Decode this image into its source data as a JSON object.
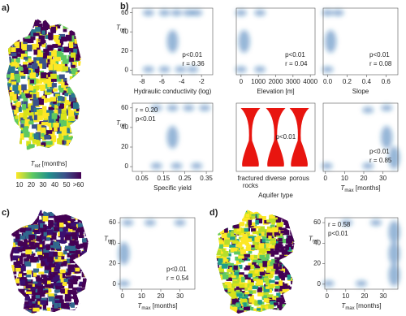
{
  "panel_labels": {
    "a": "a)",
    "b": "b)",
    "c": "c)",
    "d": "d)"
  },
  "colorbar": {
    "title": {
      "symbol": "T",
      "subscript": "ret",
      "unit": " [months]"
    },
    "ticks": [
      "10",
      "20",
      "30",
      "40",
      "50",
      ">60"
    ]
  },
  "y_axis_title": {
    "symbol": "T",
    "subscript": "ret"
  },
  "yticks": [
    "0",
    "20",
    "40",
    "60"
  ],
  "plots": [
    {
      "xlabel": "Hydraulic conductivity (log)",
      "xticks": [
        "-8",
        "-6",
        "-4",
        "-2"
      ],
      "annotations": [
        "p<0.01",
        "r = 0.36"
      ]
    },
    {
      "xlabel": "Elevation [m]",
      "xticks": [
        "0",
        "1000",
        "2000",
        "3000",
        "4000"
      ],
      "annotations": [
        "p<0.01",
        "r = 0.04"
      ]
    },
    {
      "xlabel": "Slope",
      "xticks": [
        "0.0",
        "0.2",
        "0.4",
        "0.6"
      ],
      "annotations": [
        "p<0.01",
        "r = 0.08"
      ]
    },
    {
      "xlabel": "Specific yield",
      "xticks": [
        "0.05",
        "0.15",
        "0.25",
        "0.35"
      ],
      "annotations": [
        "r = 0.20",
        "p<0.01"
      ]
    },
    {
      "xlabel": "Aquifer type",
      "categories": [
        [
          "fractured",
          "rocks"
        ],
        [
          "diverse"
        ],
        [
          "porous"
        ]
      ],
      "annotations": [
        "p<0.01"
      ]
    },
    {
      "xlabel": {
        "symbol": "T",
        "subscript": "max",
        "unit": " [months]"
      },
      "xticks": [
        "0",
        "10",
        "20",
        "30"
      ],
      "annotations": [
        "p<0.01",
        "r = 0.85"
      ]
    },
    {
      "xlabel": {
        "symbol": "T",
        "subscript": "max",
        "unit": " [months]"
      },
      "xticks": [
        "0",
        "10",
        "20",
        "30"
      ],
      "annotations": [
        "p<0.01",
        "r = 0.54"
      ]
    },
    {
      "xlabel": {
        "symbol": "T",
        "subscript": "max",
        "unit": " [months]"
      },
      "xticks": [
        "0",
        "10",
        "20",
        "30"
      ],
      "annotations": [
        "r = 0.58",
        "p<0.01"
      ]
    }
  ]
}
